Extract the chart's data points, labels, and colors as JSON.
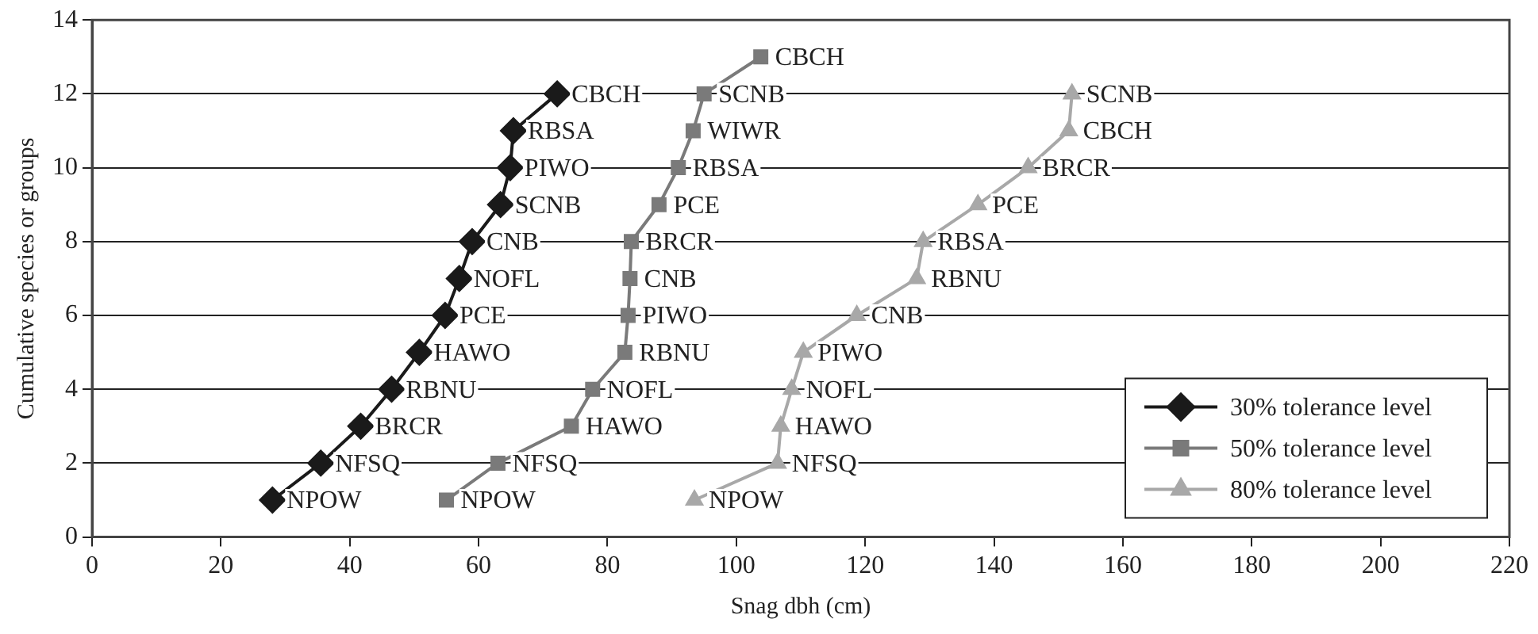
{
  "chart_data": {
    "type": "line",
    "xlabel": "Snag dbh (cm)",
    "ylabel": "Cumulative species or groups",
    "xlim": [
      0,
      220
    ],
    "xticks": [
      0,
      20,
      40,
      60,
      80,
      100,
      120,
      140,
      160,
      180,
      200,
      220
    ],
    "ylim": [
      0,
      14
    ],
    "yticks": [
      0,
      2,
      4,
      6,
      8,
      10,
      12,
      14
    ],
    "grid": "y",
    "legend": "bottom right",
    "line_style": "solid",
    "series": [
      {
        "name": "30% tolerance level",
        "color": "#1a1a1a",
        "marker": "diamond",
        "x": [
          28,
          35.5,
          41.7,
          46.5,
          50.8,
          54.8,
          57,
          59,
          63.4,
          64.9,
          65.4,
          72.2
        ],
        "values": [
          1,
          2,
          3,
          4,
          5,
          6,
          7,
          8,
          9,
          10,
          11,
          12
        ]
      },
      {
        "name": "50% tolerance level",
        "color": "#7a7a7a",
        "marker": "square",
        "x": [
          55,
          63,
          74.4,
          77.7,
          82.7,
          83.2,
          83.5,
          83.7,
          88,
          91,
          93.3,
          95,
          103.8
        ],
        "values": [
          1,
          2,
          3,
          4,
          5,
          6,
          7,
          8,
          9,
          10,
          11,
          12,
          13
        ]
      },
      {
        "name": "80% tolerance level",
        "color": "#a8a8a8",
        "marker": "triangle",
        "x": [
          93.5,
          106.4,
          106.9,
          108.6,
          110.4,
          118.7,
          128,
          129,
          137.5,
          145.3,
          151.6,
          152.1
        ],
        "values": [
          1,
          2,
          3,
          4,
          5,
          6,
          7,
          8,
          9,
          10,
          11,
          12
        ]
      }
    ],
    "annotations": [
      {
        "text": "NPOW",
        "x": 28,
        "y": 1
      },
      {
        "text": "NFSQ",
        "x": 35.5,
        "y": 2
      },
      {
        "text": "BRCR",
        "x": 41.7,
        "y": 3
      },
      {
        "text": "RBNU",
        "x": 46.5,
        "y": 4
      },
      {
        "text": "HAWO",
        "x": 50.8,
        "y": 5
      },
      {
        "text": "PCE",
        "x": 54.8,
        "y": 6
      },
      {
        "text": "NOFL",
        "x": 57,
        "y": 7
      },
      {
        "text": "CNB",
        "x": 59,
        "y": 8
      },
      {
        "text": "SCNB",
        "x": 63.4,
        "y": 9
      },
      {
        "text": "PIWO",
        "x": 64.9,
        "y": 10
      },
      {
        "text": "RBSA",
        "x": 65.4,
        "y": 11
      },
      {
        "text": "CBCH",
        "x": 72.2,
        "y": 12
      },
      {
        "text": "NPOW",
        "x": 55,
        "y": 1
      },
      {
        "text": "NFSQ",
        "x": 63,
        "y": 2
      },
      {
        "text": "HAWO",
        "x": 74.4,
        "y": 3
      },
      {
        "text": "NOFL",
        "x": 77.7,
        "y": 4
      },
      {
        "text": "RBNU",
        "x": 82.7,
        "y": 5
      },
      {
        "text": "PIWO",
        "x": 83.2,
        "y": 6
      },
      {
        "text": "CNB",
        "x": 83.5,
        "y": 7
      },
      {
        "text": "BRCR",
        "x": 83.7,
        "y": 8
      },
      {
        "text": "PCE",
        "x": 88,
        "y": 9
      },
      {
        "text": "RBSA",
        "x": 91,
        "y": 10
      },
      {
        "text": "WIWR",
        "x": 93.3,
        "y": 11
      },
      {
        "text": "SCNB",
        "x": 95,
        "y": 12
      },
      {
        "text": "CBCH",
        "x": 103.8,
        "y": 13
      },
      {
        "text": "NPOW",
        "x": 93.5,
        "y": 1
      },
      {
        "text": "NFSQ",
        "x": 106.4,
        "y": 2
      },
      {
        "text": "HAWO",
        "x": 106.9,
        "y": 3
      },
      {
        "text": "NOFL",
        "x": 108.6,
        "y": 4
      },
      {
        "text": "PIWO",
        "x": 110.4,
        "y": 5
      },
      {
        "text": "CNB",
        "x": 118.7,
        "y": 6
      },
      {
        "text": "RBNU",
        "x": 128,
        "y": 7
      },
      {
        "text": "RBSA",
        "x": 129,
        "y": 8
      },
      {
        "text": "PCE",
        "x": 137.5,
        "y": 9
      },
      {
        "text": "BRCR",
        "x": 145.3,
        "y": 10
      },
      {
        "text": "CBCH",
        "x": 151.6,
        "y": 11
      },
      {
        "text": "SCNB",
        "x": 152.1,
        "y": 12
      }
    ]
  }
}
